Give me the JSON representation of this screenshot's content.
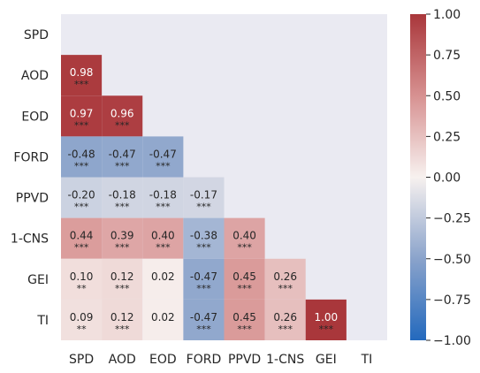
{
  "chart_data": {
    "type": "heatmap",
    "variables": [
      "SPD",
      "AOD",
      "EOD",
      "FORD",
      "PPVD",
      "1-CNS",
      "GEI",
      "TI"
    ],
    "lower_triangle": [
      [],
      [
        0.98
      ],
      [
        0.97,
        0.96
      ],
      [
        -0.48,
        -0.47,
        -0.47
      ],
      [
        -0.2,
        -0.18,
        -0.18,
        -0.17
      ],
      [
        0.44,
        0.39,
        0.4,
        -0.38,
        0.4
      ],
      [
        0.1,
        0.12,
        0.02,
        -0.47,
        0.45,
        0.26
      ],
      [
        0.09,
        0.12,
        0.02,
        -0.47,
        0.45,
        0.26,
        1.0
      ]
    ],
    "significance": [
      [],
      [
        "***"
      ],
      [
        "***",
        "***"
      ],
      [
        "***",
        "***",
        "***"
      ],
      [
        "***",
        "***",
        "***",
        "***"
      ],
      [
        "***",
        "***",
        "***",
        "***",
        "***"
      ],
      [
        "**",
        "***",
        "",
        "***",
        "***",
        "***"
      ],
      [
        "**",
        "***",
        "",
        "***",
        "***",
        "***",
        "***"
      ]
    ],
    "mask": "upper-triangle-and-diagonal",
    "colorbar": {
      "min": -1.0,
      "max": 1.0,
      "ticks": [
        "1.00",
        "0.75",
        "0.50",
        "0.25",
        "0.00",
        "−0.25",
        "−0.50",
        "−0.75",
        "−1.00"
      ],
      "colormap": "vlag",
      "low_color": "#2369bd",
      "mid_color": "#f7f1ef",
      "high_color": "#a9373b"
    },
    "grid": false,
    "background_color": "#eaeaf2"
  }
}
